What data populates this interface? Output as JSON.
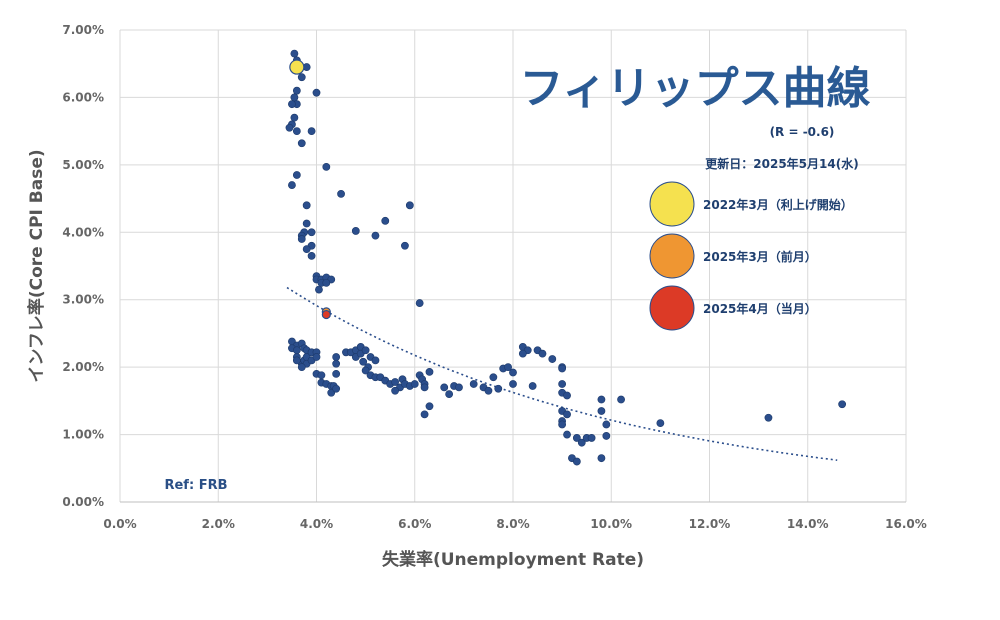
{
  "chart_data": {
    "type": "scatter",
    "title": "フィリップス曲線",
    "correlation_label": "(R = -0.6)",
    "updated_label": "更新日：2025年5月14(水)",
    "ref_label": "Ref: FRB",
    "xlabel": "失業率(Unemployment Rate)",
    "ylabel": "インフレ率(Core CPI Base)",
    "xlim": [
      0,
      16
    ],
    "ylim": [
      0,
      7
    ],
    "grid": true,
    "x_ticks": [
      "0.0%",
      "2.0%",
      "4.0%",
      "6.0%",
      "8.0%",
      "10.0%",
      "12.0%",
      "14.0%",
      "16.0%"
    ],
    "y_ticks": [
      "0.00%",
      "1.00%",
      "2.00%",
      "3.00%",
      "4.00%",
      "5.00%",
      "6.00%",
      "7.00%"
    ],
    "legend_position": "right",
    "legend": [
      {
        "label": "2022年3月（利上げ開始）",
        "color": "#f5e14f"
      },
      {
        "label": "2025年3月（前月）",
        "color": "#ef9632"
      },
      {
        "label": "2025年4月（当月）",
        "color": "#dc3a26"
      }
    ],
    "series": [
      {
        "color": "#2b4e8c",
        "points": [
          [
            3.55,
            6.65
          ],
          [
            3.6,
            6.55
          ],
          [
            3.8,
            6.45
          ],
          [
            3.7,
            6.3
          ],
          [
            3.6,
            6.1
          ],
          [
            3.55,
            6.0
          ],
          [
            3.6,
            5.9
          ],
          [
            3.5,
            5.9
          ],
          [
            3.55,
            5.7
          ],
          [
            3.5,
            5.6
          ],
          [
            3.45,
            5.55
          ],
          [
            3.6,
            5.5
          ],
          [
            3.9,
            5.5
          ],
          [
            3.7,
            5.32
          ],
          [
            4.0,
            6.07
          ],
          [
            3.6,
            4.85
          ],
          [
            3.5,
            4.7
          ],
          [
            3.8,
            4.4
          ],
          [
            3.8,
            4.13
          ],
          [
            3.75,
            4.0
          ],
          [
            3.9,
            4.0
          ],
          [
            3.7,
            3.95
          ],
          [
            3.7,
            3.9
          ],
          [
            3.9,
            3.8
          ],
          [
            3.8,
            3.75
          ],
          [
            3.9,
            3.65
          ],
          [
            4.0,
            3.35
          ],
          [
            4.0,
            3.3
          ],
          [
            4.1,
            3.3
          ],
          [
            4.2,
            3.33
          ],
          [
            4.3,
            3.3
          ],
          [
            4.1,
            3.25
          ],
          [
            4.2,
            3.25
          ],
          [
            4.05,
            3.15
          ],
          [
            4.2,
            4.97
          ],
          [
            4.5,
            4.57
          ],
          [
            5.4,
            4.17
          ],
          [
            5.9,
            4.4
          ],
          [
            4.8,
            4.02
          ],
          [
            5.2,
            3.95
          ],
          [
            5.8,
            3.8
          ],
          [
            6.1,
            2.95
          ],
          [
            3.5,
            2.38
          ],
          [
            3.6,
            2.32
          ],
          [
            3.5,
            2.28
          ],
          [
            3.6,
            2.25
          ],
          [
            3.7,
            2.35
          ],
          [
            3.75,
            2.28
          ],
          [
            3.8,
            2.25
          ],
          [
            3.6,
            2.15
          ],
          [
            3.7,
            2.05
          ],
          [
            3.75,
            2.1
          ],
          [
            3.8,
            2.15
          ],
          [
            3.9,
            2.22
          ],
          [
            4.0,
            2.22
          ],
          [
            3.8,
            2.05
          ],
          [
            3.6,
            2.1
          ],
          [
            3.7,
            2.0
          ],
          [
            3.9,
            2.1
          ],
          [
            4.0,
            2.15
          ],
          [
            4.0,
            1.9
          ],
          [
            4.1,
            1.88
          ],
          [
            4.1,
            1.77
          ],
          [
            4.2,
            1.75
          ],
          [
            4.3,
            1.72
          ],
          [
            4.3,
            1.62
          ],
          [
            4.35,
            1.72
          ],
          [
            4.4,
            1.68
          ],
          [
            4.4,
            1.9
          ],
          [
            4.4,
            2.05
          ],
          [
            4.4,
            2.15
          ],
          [
            4.6,
            2.22
          ],
          [
            4.7,
            2.22
          ],
          [
            4.8,
            2.25
          ],
          [
            4.9,
            2.3
          ],
          [
            4.8,
            2.15
          ],
          [
            4.9,
            2.2
          ],
          [
            5.0,
            2.25
          ],
          [
            5.1,
            2.15
          ],
          [
            4.95,
            2.08
          ],
          [
            5.05,
            2.0
          ],
          [
            5.2,
            2.1
          ],
          [
            5.0,
            1.95
          ],
          [
            5.1,
            1.88
          ],
          [
            5.2,
            1.85
          ],
          [
            5.3,
            1.85
          ],
          [
            5.4,
            1.8
          ],
          [
            5.5,
            1.75
          ],
          [
            5.6,
            1.78
          ],
          [
            5.7,
            1.7
          ],
          [
            5.6,
            1.65
          ],
          [
            5.75,
            1.82
          ],
          [
            5.8,
            1.75
          ],
          [
            5.9,
            1.72
          ],
          [
            6.0,
            1.75
          ],
          [
            6.1,
            1.88
          ],
          [
            6.15,
            1.82
          ],
          [
            6.2,
            1.75
          ],
          [
            6.2,
            1.7
          ],
          [
            6.3,
            1.93
          ],
          [
            6.3,
            1.42
          ],
          [
            6.2,
            1.3
          ],
          [
            6.6,
            1.7
          ],
          [
            6.8,
            1.72
          ],
          [
            6.9,
            1.7
          ],
          [
            6.7,
            1.6
          ],
          [
            7.2,
            1.75
          ],
          [
            7.4,
            1.7
          ],
          [
            7.5,
            1.65
          ],
          [
            7.6,
            1.85
          ],
          [
            7.8,
            1.98
          ],
          [
            7.9,
            2.0
          ],
          [
            8.0,
            1.92
          ],
          [
            8.2,
            2.3
          ],
          [
            8.3,
            2.25
          ],
          [
            8.2,
            2.2
          ],
          [
            8.5,
            2.25
          ],
          [
            8.6,
            2.2
          ],
          [
            8.8,
            2.12
          ],
          [
            9.0,
            2.0
          ],
          [
            9.0,
            1.98
          ],
          [
            8.4,
            1.72
          ],
          [
            8.0,
            1.75
          ],
          [
            7.7,
            1.68
          ],
          [
            9.0,
            1.75
          ],
          [
            9.0,
            1.62
          ],
          [
            9.1,
            1.58
          ],
          [
            9.0,
            1.35
          ],
          [
            9.1,
            1.3
          ],
          [
            9.0,
            1.2
          ],
          [
            9.0,
            1.15
          ],
          [
            9.1,
            1.0
          ],
          [
            9.3,
            0.95
          ],
          [
            9.4,
            0.88
          ],
          [
            9.5,
            0.95
          ],
          [
            9.6,
            0.95
          ],
          [
            9.2,
            0.65
          ],
          [
            9.3,
            0.6
          ],
          [
            9.8,
            1.52
          ],
          [
            9.8,
            1.35
          ],
          [
            9.9,
            1.15
          ],
          [
            9.9,
            0.98
          ],
          [
            9.8,
            0.65
          ],
          [
            10.2,
            1.52
          ],
          [
            11.0,
            1.17
          ],
          [
            13.2,
            1.25
          ],
          [
            14.7,
            1.45
          ]
        ]
      }
    ],
    "highlight_points": [
      {
        "label": "2022年3月（利上げ開始）",
        "x": 3.6,
        "y": 6.45,
        "color": "#f5e14f"
      },
      {
        "label": "2025年3月（前月）",
        "x": 4.2,
        "y": 2.82,
        "color": "#ef9632"
      },
      {
        "label": "2025年4月（当月）",
        "x": 4.2,
        "y": 2.78,
        "color": "#dc3a26"
      }
    ],
    "trendline": {
      "style": "dotted",
      "x_start": 3.4,
      "y_start": 3.18,
      "x_end": 14.6,
      "y_end": 0.62,
      "color": "#2b4e8c"
    }
  }
}
